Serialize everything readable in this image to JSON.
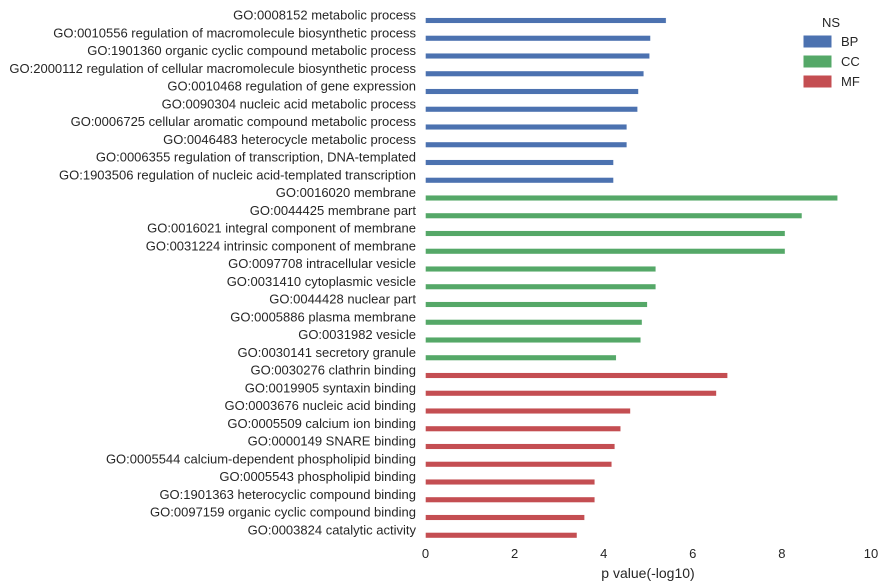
{
  "chart_data": {
    "type": "bar",
    "orientation": "horizontal",
    "xlabel": "p value(-log10)",
    "xlim": [
      0,
      10
    ],
    "xticks": [
      "0",
      "2",
      "4",
      "6",
      "8",
      "10"
    ],
    "grid": false,
    "legend": {
      "title": "NS",
      "placement": "top-right",
      "entries": [
        {
          "name": "BP",
          "color": "#4c72b0"
        },
        {
          "name": "CC",
          "color": "#55a868"
        },
        {
          "name": "MF",
          "color": "#c44e52"
        }
      ]
    },
    "series": [
      {
        "name": "BP",
        "color": "#4c72b0",
        "items": [
          {
            "label": "GO:0008152 metabolic process",
            "value": 5.4
          },
          {
            "label": "GO:0010556 regulation of macromolecule biosynthetic process",
            "value": 5.05
          },
          {
            "label": "GO:1901360 organic cyclic compound metabolic process",
            "value": 5.03
          },
          {
            "label": "GO:2000112 regulation of cellular macromolecule biosynthetic process",
            "value": 4.9
          },
          {
            "label": "GO:0010468 regulation of gene expression",
            "value": 4.78
          },
          {
            "label": "GO:0090304 nucleic acid metabolic process",
            "value": 4.76
          },
          {
            "label": "GO:0006725 cellular aromatic compound metabolic process",
            "value": 4.52
          },
          {
            "label": "GO:0046483 heterocycle metabolic process",
            "value": 4.52
          },
          {
            "label": "GO:0006355 regulation of transcription, DNA-templated",
            "value": 4.22
          },
          {
            "label": "GO:1903506 regulation of nucleic acid-templated transcription",
            "value": 4.22
          }
        ]
      },
      {
        "name": "CC",
        "color": "#55a868",
        "items": [
          {
            "label": "GO:0016020 membrane",
            "value": 9.25
          },
          {
            "label": "GO:0044425 membrane part",
            "value": 8.45
          },
          {
            "label": "GO:0016021 integral component of membrane",
            "value": 8.07
          },
          {
            "label": "GO:0031224 intrinsic component of membrane",
            "value": 8.07
          },
          {
            "label": "GO:0097708 intracellular vesicle",
            "value": 5.17
          },
          {
            "label": "GO:0031410 cytoplasmic vesicle",
            "value": 5.17
          },
          {
            "label": "GO:0044428 nuclear part",
            "value": 4.98
          },
          {
            "label": "GO:0005886 plasma membrane",
            "value": 4.86
          },
          {
            "label": "GO:0031982 vesicle",
            "value": 4.83
          },
          {
            "label": "GO:0030141 secretory granule",
            "value": 4.28
          }
        ]
      },
      {
        "name": "MF",
        "color": "#c44e52",
        "items": [
          {
            "label": "GO:0030276 clathrin binding",
            "value": 6.78
          },
          {
            "label": "GO:0019905 syntaxin binding",
            "value": 6.53
          },
          {
            "label": "GO:0003676 nucleic acid binding",
            "value": 4.6
          },
          {
            "label": "GO:0005509 calcium ion binding",
            "value": 4.38
          },
          {
            "label": "GO:0000149 SNARE binding",
            "value": 4.25
          },
          {
            "label": "GO:0005544 calcium-dependent phospholipid binding",
            "value": 4.18
          },
          {
            "label": "GO:0005543 phospholipid binding",
            "value": 3.8
          },
          {
            "label": "GO:1901363 heterocyclic compound binding",
            "value": 3.8
          },
          {
            "label": "GO:0097159 organic cyclic compound binding",
            "value": 3.57
          },
          {
            "label": "GO:0003824 catalytic activity",
            "value": 3.4
          }
        ]
      }
    ]
  }
}
